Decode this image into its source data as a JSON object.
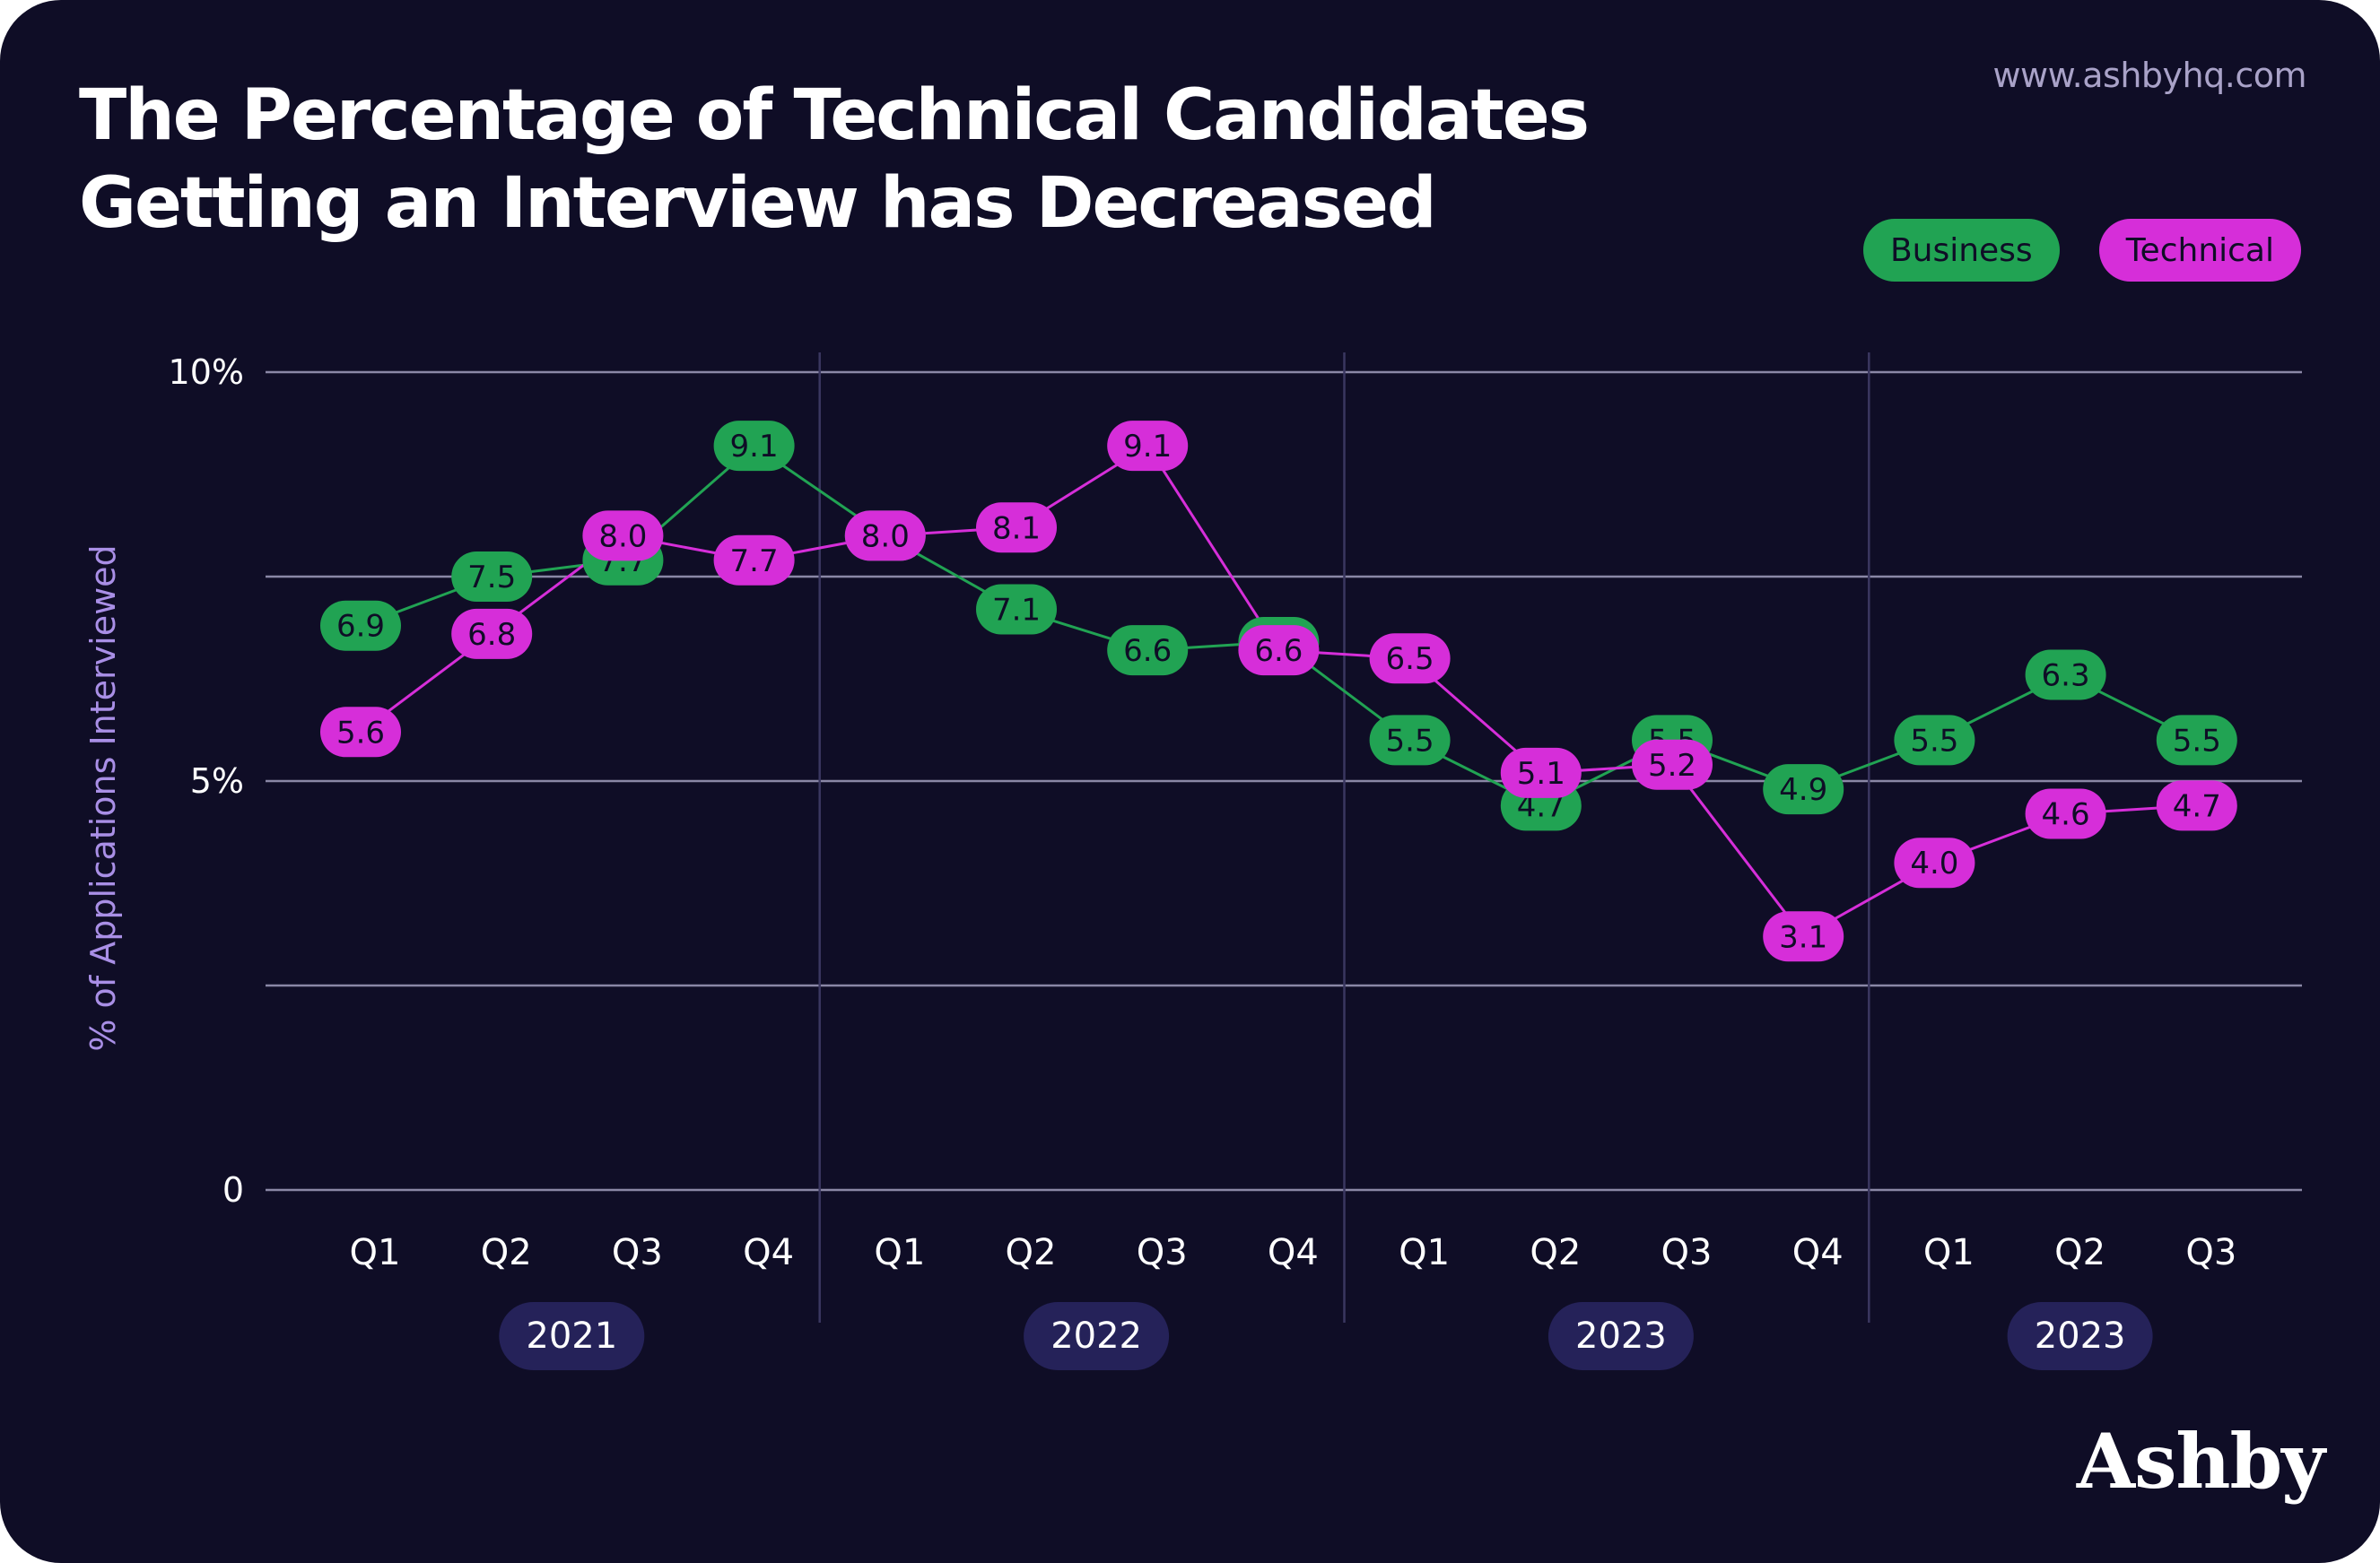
{
  "url_text": "www.ashbyhq.com",
  "brand_text": "Ashby",
  "colors": {
    "background": "#0f0d26",
    "business": "#21a353",
    "technical": "#d62ed9",
    "year_pill": "#252259",
    "grid": "#8a87a6",
    "ylabel": "#a98fe6"
  },
  "chart_data": {
    "type": "line",
    "title": [
      "The Percentage of Technical Candidates",
      "Getting an Interview has Decreased"
    ],
    "ylabel": "% of Applications Interviewed",
    "xlabel": "",
    "ylim": [
      0,
      10
    ],
    "ytick_labels": [
      {
        "value": 10,
        "label": "10%"
      },
      {
        "value": 5,
        "label": "5%"
      },
      {
        "value": 0,
        "label": "0"
      }
    ],
    "gridlines": [
      0,
      2.5,
      5,
      7.5,
      10
    ],
    "categories": [
      "Q1",
      "Q2",
      "Q3",
      "Q4",
      "Q1",
      "Q2",
      "Q3",
      "Q4",
      "Q1",
      "Q2",
      "Q3",
      "Q4",
      "Q1",
      "Q2",
      "Q3"
    ],
    "year_groups": [
      {
        "label": "2021",
        "start": 0,
        "end": 3
      },
      {
        "label": "2022",
        "start": 4,
        "end": 7
      },
      {
        "label": "2023",
        "start": 8,
        "end": 11
      },
      {
        "label": "2023",
        "start": 12,
        "end": 14
      }
    ],
    "legend_position": "top-right",
    "series": [
      {
        "name": "Business",
        "color": "#21a353",
        "values": [
          6.9,
          7.5,
          7.7,
          9.1,
          8.0,
          7.1,
          6.6,
          6.7,
          5.5,
          4.7,
          5.5,
          4.9,
          5.5,
          6.3,
          5.5
        ],
        "labels": [
          "6.9",
          "7.5",
          "7.7",
          "9.1",
          "8.0",
          "7.1",
          "6.6",
          "6.7",
          "5.5",
          "4.7",
          "5.5",
          "4.9",
          "5.5",
          "6.3",
          "5.5"
        ]
      },
      {
        "name": "Technical",
        "color": "#d62ed9",
        "values": [
          5.6,
          6.8,
          8.0,
          7.7,
          8.0,
          8.1,
          9.1,
          6.6,
          6.5,
          5.1,
          5.2,
          3.1,
          4.0,
          4.6,
          4.7
        ],
        "labels": [
          "5.6",
          "6.8",
          "8.0",
          "7.7",
          "8.0",
          "8.1",
          "9.1",
          "6.6",
          "6.5",
          "5.1",
          "5.2",
          "3.1",
          "4.0",
          "4.6",
          "4.7"
        ]
      }
    ]
  }
}
